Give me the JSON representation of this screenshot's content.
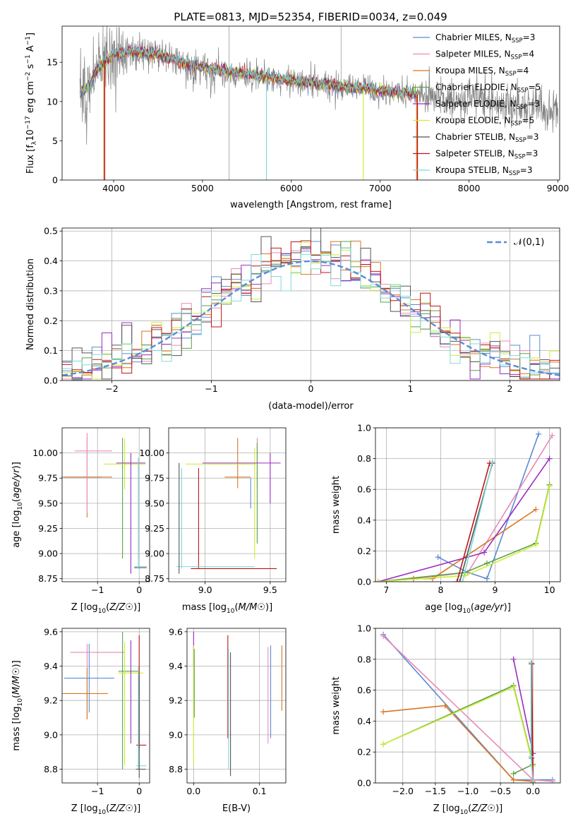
{
  "figure": {
    "title": "PLATE=0813, MJD=52354, FIBERID=0034, z=0.049"
  },
  "palette": {
    "Chabrier MILES": "#5b8bd6",
    "Salpeter MILES": "#e98ab8",
    "Kroupa MILES": "#d97520",
    "Chabrier ELODIE": "#5aa04a",
    "Salpeter ELODIE": "#9a2cc2",
    "Kroupa ELODIE": "#ccee33",
    "Chabrier STELIB": "#555555",
    "Salpeter STELIB": "#c01515",
    "Kroupa STELIB": "#80d8dc"
  },
  "chart_data": [
    {
      "id": "spectrum",
      "type": "line",
      "title": "PLATE=0813, MJD=52354, FIBERID=0034, z=0.049",
      "xlabel": "wavelength [Angstrom, rest frame]",
      "ylabel_parts": [
        "Flux [f",
        "λ",
        "10",
        "−17",
        " erg cm",
        "−2",
        " s",
        "−1",
        " A",
        "−1",
        "]"
      ],
      "xlim": [
        3420,
        9020
      ],
      "ylim": [
        0,
        19.6
      ],
      "xticks": [
        4000,
        5000,
        6000,
        7000,
        8000,
        9000
      ],
      "yticks": [
        0,
        5,
        10,
        15
      ],
      "grid": false,
      "legend_position": "top-right",
      "legend": [
        {
          "name": "Chabrier MILES",
          "nssp": "3"
        },
        {
          "name": "Salpeter MILES",
          "nssp": "4"
        },
        {
          "name": "Kroupa MILES",
          "nssp": "4"
        },
        {
          "name": "Chabrier ELODIE",
          "nssp": "5"
        },
        {
          "name": "Salpeter ELODIE",
          "nssp": "3"
        },
        {
          "name": "Kroupa ELODIE",
          "nssp": "5"
        },
        {
          "name": "Chabrier STELIB",
          "nssp": "3"
        },
        {
          "name": "Salpeter STELIB",
          "nssp": "3"
        },
        {
          "name": "Kroupa STELIB",
          "nssp": "3"
        }
      ],
      "data_envelope": {
        "x": [
          3620,
          3700,
          3800,
          3900,
          4000,
          4200,
          4500,
          5000,
          5500,
          6000,
          6500,
          7000,
          7400,
          7600,
          7800,
          8000,
          8500,
          9000
        ],
        "y": [
          10.5,
          11.2,
          13.5,
          15.0,
          16.0,
          16.3,
          15.8,
          14.2,
          13.4,
          12.6,
          12.0,
          11.3,
          10.9,
          10.6,
          10.4,
          10.2,
          9.6,
          9.1
        ]
      },
      "model_envelope": {
        "x": [
          3620,
          3700,
          3800,
          3900,
          4000,
          4200,
          4500,
          5000,
          5500,
          6000,
          6500,
          7000,
          7400
        ],
        "y": [
          11.0,
          11.6,
          13.8,
          15.1,
          16.0,
          16.4,
          15.9,
          14.3,
          13.5,
          12.7,
          12.0,
          11.4,
          10.9
        ]
      },
      "model_range": [
        3620,
        7420
      ]
    },
    {
      "id": "residuals",
      "type": "histogram",
      "xlabel": "(data-model)/error",
      "ylabel": "Normed distribution",
      "xlim": [
        -2.5,
        2.5
      ],
      "ylim": [
        0,
        0.51
      ],
      "xticks": [
        -2,
        -1,
        0,
        1,
        2
      ],
      "yticks": [
        0.0,
        0.1,
        0.2,
        0.3,
        0.4,
        0.5
      ],
      "grid": true,
      "legend_position": "top-right",
      "reference_curve": {
        "name": "𝒩(0,1)",
        "mean": 0,
        "sigma": 1
      },
      "bin_width": 0.1
    },
    {
      "id": "age_vs_Z",
      "type": "errorbar",
      "xlabel": "Z [log10(Z/Z☉)]",
      "ylabel": "age  [log10(age/yr)]",
      "xlim": [
        -1.85,
        0.25
      ],
      "ylim": [
        8.72,
        10.25
      ],
      "xticks": [
        -1,
        0
      ],
      "yticks": [
        8.75,
        9.0,
        9.25,
        9.5,
        9.75,
        10.0
      ],
      "grid": true,
      "points": [
        {
          "s": "Chabrier MILES",
          "x": -1.35,
          "xerr": 0.45,
          "y": 9.76,
          "yerr": 0.0
        },
        {
          "s": "Salpeter MILES",
          "x": -1.1,
          "xerr": 0.45,
          "y": 10.02,
          "yerr": 0.0
        },
        {
          "s": "Kroupa MILES",
          "x": -1.25,
          "xerr": 0.6,
          "y": 9.76,
          "yerr": 0.4
        },
        {
          "s": "Salpeter MILES",
          "x": -1.25,
          "xerr": 0.0,
          "y": 9.8,
          "yerr": 0.4
        },
        {
          "s": "Chabrier ELODIE",
          "x": -0.4,
          "xerr": 0.0,
          "y": 9.55,
          "yerr": 0.6
        },
        {
          "s": "Kroupa ELODIE",
          "x": -0.35,
          "xerr": 0.5,
          "y": 9.89,
          "yerr": 0.25
        },
        {
          "s": "Salpeter ELODIE",
          "x": -0.2,
          "xerr": 0.35,
          "y": 9.9,
          "yerr": 0.0
        },
        {
          "s": "Salpeter ELODIE",
          "x": -0.2,
          "xerr": 0.0,
          "y": 9.4,
          "yerr": 0.6
        },
        {
          "s": "Chabrier STELIB",
          "x": -0.02,
          "xerr": 0.0,
          "y": 9.45,
          "yerr": 0.5
        },
        {
          "s": "Kroupa STELIB",
          "x": 0.03,
          "xerr": 0.15,
          "y": 8.87,
          "yerr": 0.0
        },
        {
          "s": "Chabrier STELIB",
          "x": 0.03,
          "xerr": 0.15,
          "y": 8.86,
          "yerr": 0.0
        },
        {
          "s": "Kroupa STELIB",
          "x": -0.02,
          "xerr": 0.0,
          "y": 9.4,
          "yerr": 0.55
        }
      ]
    },
    {
      "id": "age_vs_mass",
      "type": "errorbar",
      "xlabel": "mass [log10(M/M☉)]",
      "ylabel": "",
      "xlim": [
        8.72,
        9.62
      ],
      "ylim": [
        8.72,
        10.25
      ],
      "xticks": [
        9.0,
        9.5
      ],
      "yticks": [
        8.75,
        9.0,
        9.25,
        9.5,
        9.75,
        10.0
      ],
      "grid": true,
      "points": [
        {
          "s": "Kroupa MILES",
          "x": 9.25,
          "xerr": 0.0,
          "y": 9.9,
          "yerr": 0.25
        },
        {
          "s": "Salpeter MILES",
          "x": 9.4,
          "xerr": 0.0,
          "y": 9.9,
          "yerr": 0.25
        },
        {
          "s": "Chabrier MILES",
          "x": 9.35,
          "xerr": 0.0,
          "y": 9.6,
          "yerr": 0.15
        },
        {
          "s": "Kroupa MILES",
          "x": 9.25,
          "xerr": 0.1,
          "y": 9.76,
          "yerr": 0.0
        },
        {
          "s": "Chabrier ELODIE",
          "x": 9.4,
          "xerr": 0.0,
          "y": 9.6,
          "yerr": 0.5
        },
        {
          "s": "Kroupa ELODIE",
          "x": 9.38,
          "xerr": 0.0,
          "y": 9.5,
          "yerr": 0.55
        },
        {
          "s": "Kroupa ELODIE",
          "x": 9.12,
          "xerr": 0.27,
          "y": 9.89,
          "yerr": 0.0
        },
        {
          "s": "Salpeter ELODIE",
          "x": 9.5,
          "xerr": 0.0,
          "y": 9.75,
          "yerr": 0.25
        },
        {
          "s": "Salpeter ELODIE",
          "x": 9.28,
          "xerr": 0.3,
          "y": 9.9,
          "yerr": 0.0
        },
        {
          "s": "Salpeter STELIB",
          "x": 8.95,
          "xerr": 0.0,
          "y": 9.35,
          "yerr": 0.5
        },
        {
          "s": "Salpeter STELIB",
          "x": 9.22,
          "xerr": 0.33,
          "y": 8.85,
          "yerr": 0.0
        },
        {
          "s": "Kroupa STELIB",
          "x": 8.82,
          "xerr": 0.0,
          "y": 9.35,
          "yerr": 0.5
        },
        {
          "s": "Kroupa STELIB",
          "x": 9.08,
          "xerr": 0.3,
          "y": 8.87,
          "yerr": 0.0
        },
        {
          "s": "Chabrier STELIB",
          "x": 8.8,
          "xerr": 0.0,
          "y": 9.35,
          "yerr": 0.55
        }
      ]
    },
    {
      "id": "mw_vs_age",
      "type": "line",
      "xlabel": "age  [log10(age/yr)]",
      "ylabel": "mass weight",
      "xlim": [
        6.8,
        10.2
      ],
      "ylim": [
        0,
        1.0
      ],
      "xticks": [
        7,
        8,
        9,
        10
      ],
      "yticks": [
        0.0,
        0.2,
        0.4,
        0.6,
        0.8,
        1.0
      ],
      "grid": true,
      "series": [
        {
          "s": "Chabrier MILES",
          "x": [
            7.95,
            8.5,
            8.85,
            9.8
          ],
          "y": [
            0.16,
            0.06,
            0.02,
            0.96
          ]
        },
        {
          "s": "Salpeter MILES",
          "x": [
            7.5,
            8.5,
            10.05
          ],
          "y": [
            0.02,
            0.06,
            0.95
          ]
        },
        {
          "s": "Kroupa MILES",
          "x": [
            7.5,
            7.85,
            9.75
          ],
          "y": [
            0.02,
            0.02,
            0.47
          ]
        },
        {
          "s": "Chabrier ELODIE",
          "x": [
            6.85,
            8.45,
            8.85,
            9.75,
            10.0
          ],
          "y": [
            0.0,
            0.06,
            0.12,
            0.25,
            0.63
          ]
        },
        {
          "s": "Salpeter ELODIE",
          "x": [
            6.85,
            8.8,
            10.0
          ],
          "y": [
            0.0,
            0.19,
            0.8
          ]
        },
        {
          "s": "Kroupa ELODIE",
          "x": [
            6.85,
            8.45,
            9.75,
            10.0
          ],
          "y": [
            0.0,
            0.04,
            0.24,
            0.62
          ]
        },
        {
          "s": "Chabrier STELIB",
          "x": [
            8.35,
            8.95
          ],
          "y": [
            0.0,
            0.77
          ]
        },
        {
          "s": "Salpeter STELIB",
          "x": [
            8.3,
            8.9
          ],
          "y": [
            0.0,
            0.77
          ]
        },
        {
          "s": "Kroupa STELIB",
          "x": [
            8.4,
            8.95
          ],
          "y": [
            0.0,
            0.78
          ]
        }
      ]
    },
    {
      "id": "mass_vs_Z",
      "type": "errorbar",
      "xlabel": "Z [log10(Z/Z☉)]",
      "ylabel": "mass [log10(M/M☉)]",
      "xlim": [
        -1.85,
        0.25
      ],
      "ylim": [
        8.72,
        9.62
      ],
      "xticks": [
        -1,
        0
      ],
      "yticks": [
        8.8,
        9.0,
        9.2,
        9.4,
        9.6
      ],
      "grid": true,
      "points": [
        {
          "s": "Chabrier MILES",
          "x": -1.2,
          "xerr": 0.6,
          "y": 9.33,
          "yerr": 0.0
        },
        {
          "s": "Chabrier MILES",
          "x": -1.2,
          "xerr": 0.0,
          "y": 9.33,
          "yerr": 0.2
        },
        {
          "s": "Salpeter MILES",
          "x": -1.25,
          "xerr": 0.0,
          "y": 9.31,
          "yerr": 0.22
        },
        {
          "s": "Salpeter MILES",
          "x": -1.0,
          "xerr": 0.65,
          "y": 9.48,
          "yerr": 0.0
        },
        {
          "s": "Kroupa MILES",
          "x": -1.25,
          "xerr": 0.0,
          "y": 9.24,
          "yerr": 0.15
        },
        {
          "s": "Kroupa MILES",
          "x": -1.3,
          "xerr": 0.55,
          "y": 9.24,
          "yerr": 0.0
        },
        {
          "s": "Chabrier ELODIE",
          "x": -0.4,
          "xerr": 0.0,
          "y": 9.2,
          "yerr": 0.4
        },
        {
          "s": "Chabrier ELODIE",
          "x": -0.25,
          "xerr": 0.25,
          "y": 9.37,
          "yerr": 0.0
        },
        {
          "s": "Kroupa ELODIE",
          "x": -0.35,
          "xerr": 0.0,
          "y": 9.18,
          "yerr": 0.36
        },
        {
          "s": "Kroupa ELODIE",
          "x": -0.2,
          "xerr": 0.3,
          "y": 9.36,
          "yerr": 0.0
        },
        {
          "s": "Salpeter ELODIE",
          "x": -0.2,
          "xerr": 0.0,
          "y": 9.25,
          "yerr": 0.3
        },
        {
          "s": "Salpeter STELIB",
          "x": 0.0,
          "xerr": 0.0,
          "y": 9.25,
          "yerr": 0.33
        },
        {
          "s": "Salpeter STELIB",
          "x": 0.05,
          "xerr": 0.12,
          "y": 8.94,
          "yerr": 0.0
        },
        {
          "s": "Kroupa STELIB",
          "x": -0.02,
          "xerr": 0.0,
          "y": 9.1,
          "yerr": 0.3
        },
        {
          "s": "Kroupa STELIB",
          "x": 0.05,
          "xerr": 0.12,
          "y": 8.82,
          "yerr": 0.0
        },
        {
          "s": "Chabrier STELIB",
          "x": 0.0,
          "xerr": 0.0,
          "y": 9.05,
          "yerr": 0.3
        },
        {
          "s": "Chabrier STELIB",
          "x": 0.04,
          "xerr": 0.12,
          "y": 8.8,
          "yerr": 0.0
        }
      ]
    },
    {
      "id": "mass_vs_ebv",
      "type": "errorbar",
      "xlabel": "E(B-V)",
      "ylabel": "",
      "xlim": [
        -0.01,
        0.14
      ],
      "ylim": [
        8.72,
        9.62
      ],
      "xticks": [
        0.0,
        0.1
      ],
      "yticks": [
        8.8,
        9.0,
        9.2,
        9.4,
        9.6
      ],
      "grid": true,
      "points": [
        {
          "s": "Salpeter ELODIE",
          "x": 0.0,
          "xerr": 0.0,
          "y": 9.5,
          "yerr": 0.1
        },
        {
          "s": "Kroupa ELODIE",
          "x": 0.0,
          "xerr": 0.0,
          "y": 9.17,
          "yerr": 0.35
        },
        {
          "s": "Chabrier ELODIE",
          "x": 0.001,
          "xerr": 0.0,
          "y": 9.3,
          "yerr": 0.2
        },
        {
          "s": "Salpeter STELIB",
          "x": 0.052,
          "xerr": 0.0,
          "y": 9.28,
          "yerr": 0.3
        },
        {
          "s": "Chabrier STELIB",
          "x": 0.056,
          "xerr": 0.0,
          "y": 9.12,
          "yerr": 0.36
        },
        {
          "s": "Kroupa STELIB",
          "x": 0.053,
          "xerr": 0.0,
          "y": 9.15,
          "yerr": 0.35
        },
        {
          "s": "Salpeter MILES",
          "x": 0.113,
          "xerr": 0.0,
          "y": 9.23,
          "yerr": 0.28
        },
        {
          "s": "Chabrier MILES",
          "x": 0.117,
          "xerr": 0.0,
          "y": 9.25,
          "yerr": 0.27
        },
        {
          "s": "Kroupa MILES",
          "x": 0.134,
          "xerr": 0.0,
          "y": 9.33,
          "yerr": 0.19
        }
      ]
    },
    {
      "id": "mw_vs_Z",
      "type": "line",
      "xlabel": "Z [log10(Z/Z☉)]",
      "ylabel": "mass weight",
      "xlim": [
        -2.42,
        0.42
      ],
      "ylim": [
        0,
        1.0
      ],
      "xticks": [
        -2.0,
        -1.5,
        -1.0,
        -0.5,
        0.0
      ],
      "yticks": [
        0.0,
        0.2,
        0.4,
        0.6,
        0.8,
        1.0
      ],
      "grid": true,
      "series": [
        {
          "s": "Chabrier MILES",
          "x": [
            -2.3,
            -0.3,
            0.3
          ],
          "y": [
            0.96,
            0.02,
            0.02
          ]
        },
        {
          "s": "Salpeter MILES",
          "x": [
            -2.3,
            0.0,
            0.3
          ],
          "y": [
            0.95,
            0.02,
            0.01
          ]
        },
        {
          "s": "Kroupa MILES",
          "x": [
            -2.3,
            -1.35,
            -0.3,
            0.0
          ],
          "y": [
            0.46,
            0.5,
            0.02,
            0.01
          ]
        },
        {
          "s": "Chabrier ELODIE",
          "x": [
            -2.3,
            -0.3,
            0.0,
            -0.3
          ],
          "y": [
            0.25,
            0.63,
            0.12,
            0.06
          ]
        },
        {
          "s": "Salpeter ELODIE",
          "x": [
            -0.3,
            0.0
          ],
          "y": [
            0.8,
            0.19
          ]
        },
        {
          "s": "Kroupa ELODIE",
          "x": [
            -2.3,
            -0.3,
            0.0
          ],
          "y": [
            0.25,
            0.62,
            0.11
          ]
        },
        {
          "s": "Chabrier STELIB",
          "x": [
            -0.02,
            -0.02,
            0.0
          ],
          "y": [
            0.77,
            0.16,
            0.0
          ]
        },
        {
          "s": "Salpeter STELIB",
          "x": [
            0.0,
            -0.02
          ],
          "y": [
            0.0,
            0.77
          ]
        },
        {
          "s": "Kroupa STELIB",
          "x": [
            -0.03,
            -0.03,
            0.0
          ],
          "y": [
            0.78,
            0.17,
            0.0
          ]
        }
      ]
    }
  ]
}
